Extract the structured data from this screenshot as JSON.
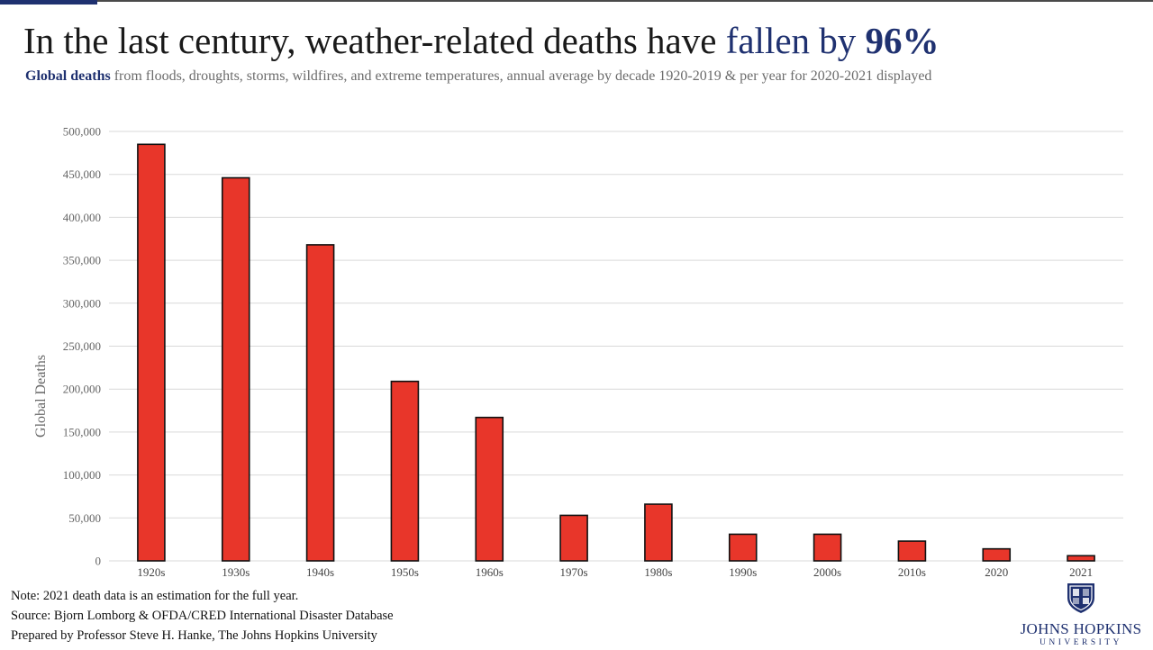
{
  "header": {
    "title_main": "In the last century, weather-related deaths have ",
    "title_highlight": "fallen by ",
    "title_highlight_bold": "96%",
    "subtitle_bold": "Global deaths",
    "subtitle_rest": " from floods, droughts, storms, wildfires, and extreme temperatures, annual average by decade 1920-2019 & per year for 2020-2021 displayed"
  },
  "footer": {
    "note": "Note: 2021 death data is an estimation for the full year.",
    "source": "Source: Bjorn Lomborg & OFDA/CRED International Disaster Database",
    "prepared": "Prepared by Professor Steve H. Hanke, The Johns Hopkins University"
  },
  "logo": {
    "name": "JOHNS HOPKINS",
    "sub": "UNIVERSITY",
    "icon": "university-shield-icon"
  },
  "colors": {
    "bar": "#e8362a",
    "bar_outline": "#111111",
    "accent": "#1f3170",
    "grid": "#d9d9d9"
  },
  "chart_data": {
    "type": "bar",
    "title": "In the last century, weather-related deaths have fallen by 96%",
    "categories": [
      "1920s",
      "1930s",
      "1940s",
      "1950s",
      "1960s",
      "1970s",
      "1980s",
      "1990s",
      "2000s",
      "2010s",
      "2020",
      "2021"
    ],
    "values": [
      485000,
      446000,
      368000,
      209000,
      167000,
      53000,
      66000,
      31000,
      31000,
      23000,
      14000,
      6000
    ],
    "xlabel": "",
    "ylabel": "Global Deaths",
    "ylim": [
      0,
      500000
    ],
    "yticks": [
      0,
      50000,
      100000,
      150000,
      200000,
      250000,
      300000,
      350000,
      400000,
      450000,
      500000
    ],
    "ytick_labels": [
      "0",
      "50,000",
      "100,000",
      "150,000",
      "200,000",
      "250,000",
      "300,000",
      "350,000",
      "400,000",
      "450,000",
      "500,000"
    ],
    "grid": true,
    "legend": "none"
  }
}
